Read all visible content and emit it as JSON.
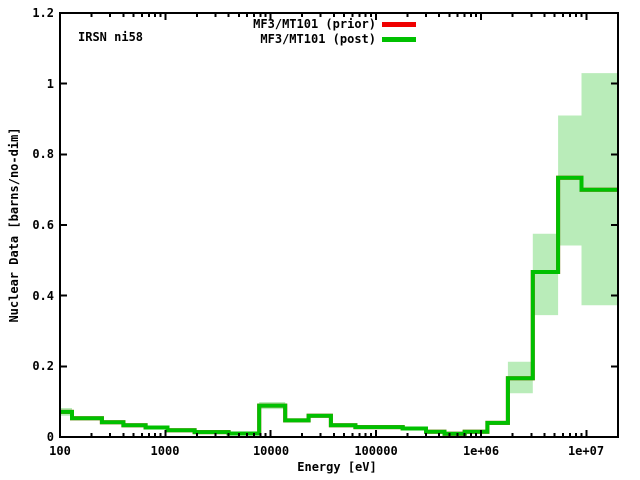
{
  "title": "IRSN ni58",
  "axes": {
    "x_label": "Energy [eV]",
    "y_label": "Nuclear Data [barns/no-dim]",
    "x_tick_labels": [
      "100",
      "1000",
      "10000",
      "100000",
      "1e+06",
      "1e+07"
    ],
    "y_tick_labels": [
      "0",
      "0.2",
      "0.4",
      "0.6",
      "0.8",
      "1",
      "1.2"
    ]
  },
  "legend": {
    "entries": [
      {
        "label": "MF3/MT101 (prior)",
        "color": "#ef0000"
      },
      {
        "label": "MF3/MT101 (post)",
        "color": "#00c000"
      }
    ]
  },
  "colors": {
    "post_line": "#00c000",
    "prior_line": "#ef0000",
    "uncertainty_band": "#b9ecb9",
    "axes": "#000000",
    "background": "#ffffff"
  },
  "chart_data": {
    "type": "line",
    "subtype": "step-histogram with shaded uncertainty band (gnuplot style)",
    "title": "IRSN ni58",
    "xlabel": "Energy [eV]",
    "ylabel": "Nuclear Data [barns/no-dim]",
    "x_scale": "log",
    "y_scale": "linear",
    "xlim": [
      100,
      20000000
    ],
    "ylim": [
      0,
      1.2
    ],
    "x_tick_values": [
      100,
      1000,
      10000,
      100000,
      1000000,
      10000000
    ],
    "y_tick_values": [
      0,
      0.2,
      0.4,
      0.6,
      0.8,
      1,
      1.2
    ],
    "grid": false,
    "legend_position": "top-center-inside",
    "series": [
      {
        "name": "MF3/MT101 (prior)",
        "color": "#ef0000",
        "note": "identical to post curve; completely hidden beneath it in the plot"
      },
      {
        "name": "MF3/MT101 (post)",
        "color": "#00c000",
        "band_color": "#b9ecb9",
        "steps_format": [
          "x_start_eV",
          "value_barns",
          "band_low",
          "band_high"
        ],
        "steps": [
          [
            100,
            0.071,
            0.06,
            0.082
          ],
          [
            130,
            0.053,
            0.049,
            0.058
          ],
          [
            250,
            0.042,
            0.038,
            0.046
          ],
          [
            400,
            0.033,
            0.029,
            0.037
          ],
          [
            650,
            0.027,
            0.023,
            0.03
          ],
          [
            1050,
            0.019,
            0.016,
            0.022
          ],
          [
            1900,
            0.014,
            0.011,
            0.017
          ],
          [
            4000,
            0.01,
            0.008,
            0.013
          ],
          [
            7800,
            0.089,
            0.079,
            0.099
          ],
          [
            13800,
            0.047,
            0.043,
            0.052
          ],
          [
            23000,
            0.06,
            0.055,
            0.065
          ],
          [
            37500,
            0.033,
            0.029,
            0.037
          ],
          [
            64000,
            0.028,
            0.024,
            0.032
          ],
          [
            180000,
            0.024,
            0.02,
            0.028
          ],
          [
            300000,
            0.015,
            0.012,
            0.018
          ],
          [
            450000,
            0.009,
            0.007,
            0.012
          ],
          [
            700000,
            0.015,
            0.012,
            0.018
          ],
          [
            1150000,
            0.04,
            0.035,
            0.045
          ],
          [
            1800000,
            0.166,
            0.124,
            0.213
          ],
          [
            3100000,
            0.467,
            0.345,
            0.575
          ],
          [
            5400000,
            0.734,
            0.542,
            0.91
          ],
          [
            9000000,
            0.7,
            0.373,
            1.03
          ]
        ],
        "x_end": 20000000
      }
    ]
  }
}
